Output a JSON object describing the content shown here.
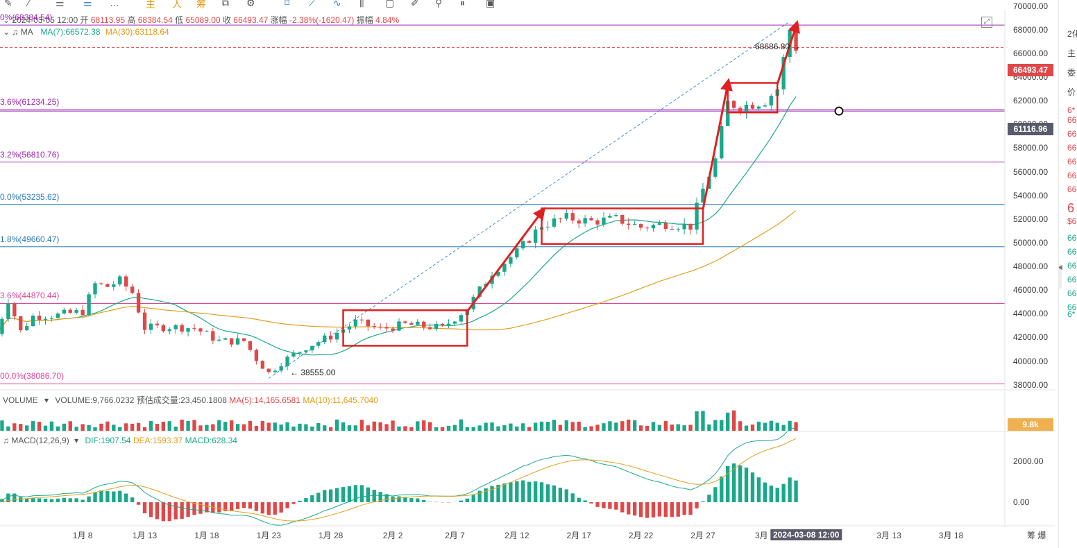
{
  "toolbar": {
    "items": [
      "主",
      "人",
      "筹"
    ]
  },
  "header": {
    "date": "2024-03-05 12:00",
    "open_label": "开",
    "open": "68113.95",
    "high_label": "高",
    "high": "68384.54",
    "low_label": "低",
    "low": "65089.00",
    "close_label": "收",
    "close": "66493.47",
    "change_label": "涨幅",
    "change": "-2.38%(-1620.47)",
    "amp_label": "振幅",
    "amp": "4.84%",
    "ma_label": "MA",
    "ma7": "MA(7):66572.38",
    "ma30": "MA(30):63118.64"
  },
  "volume_header": {
    "label": "VOLUME",
    "volume": "VOLUME:9,766.0232",
    "estimate": "预估成交量:23,450.1808",
    "ma5": "MA(5):14,165.6581",
    "ma10": "MA(10):11,645.7040",
    "tag": "9.8k"
  },
  "macd_header": {
    "label": "MACD(12,26,9)",
    "dif": "DIF:1907.54",
    "dea": "DEA:1593.37",
    "macd": "MACD:628.34"
  },
  "price_tags": {
    "last": "66493.47",
    "cursor": "61116.96"
  },
  "annotations": {
    "peak": "68686.80",
    "trough": "38555.00"
  },
  "fib_levels": [
    {
      "label": "0%(68384.54)",
      "value": 68384.54,
      "color": "#9b27b0"
    },
    {
      "label": "3.6%(61234.25)",
      "value": 61234.25,
      "color": "#9b27b0"
    },
    {
      "label": "3.2%(56810.76)",
      "value": 56810.76,
      "color": "#9b27b0"
    },
    {
      "label": "0.0%(53235.62)",
      "value": 53235.62,
      "color": "#2b7bb9"
    },
    {
      "label": "1.8%(49660.47)",
      "value": 49660.47,
      "color": "#2b7bb9"
    },
    {
      "label": "3.6%(44870.44)",
      "value": 44870.44,
      "color": "#e0469a"
    },
    {
      "label": "00.0%(38086.70)",
      "value": 38086.7,
      "color": "#e0469a"
    }
  ],
  "bottom_right": {
    "a": "筹",
    "b": "爆"
  },
  "sidebar": {
    "items": [
      "2化",
      "主",
      "委",
      "价",
      "6*",
      "66",
      "66",
      "66",
      "66",
      "66",
      "66",
      "6",
      "$6",
      "66",
      "66",
      "66",
      "66",
      "66",
      "66",
      "6*"
    ]
  },
  "chart_data": {
    "type": "candlestick",
    "timeframe": "12h",
    "y_axis": {
      "ticks": [
        70000,
        68000,
        66000,
        64000,
        62000,
        60000,
        58000,
        56000,
        54000,
        52000,
        50000,
        48000,
        46000,
        44000,
        42000,
        40000,
        38000
      ],
      "tick_labels": [
        "70000.00",
        "68000.00",
        "66000.00",
        "64000.00",
        "62000.00",
        "60000.00",
        "58000.00",
        "56000.00",
        "54000.00",
        "52000.00",
        "50000.00",
        "48000.00",
        "46000.00",
        "44000.00",
        "42000.00",
        "40000.00",
        "38000.00"
      ],
      "range": [
        37400,
        70500
      ]
    },
    "x_axis": {
      "tick_labels": [
        "1月 8",
        "1月 13",
        "1月 18",
        "1月 23",
        "1月 28",
        "2月 2",
        "2月 7",
        "2月 12",
        "2月 17",
        "2月 22",
        "2月 27",
        "3月 3",
        "2024-03-08 12:00",
        "3月 13",
        "3月 18"
      ],
      "tick_dates": [
        "2024-01-08",
        "2024-01-13",
        "2024-01-18",
        "2024-01-23",
        "2024-01-28",
        "2024-02-02",
        "2024-02-07",
        "2024-02-12",
        "2024-02-17",
        "2024-02-22",
        "2024-02-27",
        "2024-03-03",
        "2024-03-08",
        "2024-03-13",
        "2024-03-18"
      ],
      "start_date": "2024-01-01",
      "end_date": "2024-03-22"
    },
    "price_keypoints": [
      [
        "2024-01-01",
        42300
      ],
      [
        "2024-01-02",
        45200
      ],
      [
        "2024-01-03",
        42500
      ],
      [
        "2024-01-04",
        43800
      ],
      [
        "2024-01-06",
        43900
      ],
      [
        "2024-01-08",
        44200
      ],
      [
        "2024-01-09",
        46500
      ],
      [
        "2024-01-10",
        46300
      ],
      [
        "2024-01-11",
        46800
      ],
      [
        "2024-01-12",
        45800
      ],
      [
        "2024-01-13",
        42800
      ],
      [
        "2024-01-15",
        42900
      ],
      [
        "2024-01-17",
        42800
      ],
      [
        "2024-01-19",
        41700
      ],
      [
        "2024-01-21",
        41700
      ],
      [
        "2024-01-22",
        40200
      ],
      [
        "2024-01-23",
        39000
      ],
      [
        "2024-01-24",
        39900
      ],
      [
        "2024-01-26",
        41200
      ],
      [
        "2024-01-28",
        42100
      ],
      [
        "2024-01-30",
        43300
      ],
      [
        "2024-02-01",
        42700
      ],
      [
        "2024-02-03",
        43100
      ],
      [
        "2024-02-06",
        42800
      ],
      [
        "2024-02-08",
        44500
      ],
      [
        "2024-02-10",
        47500
      ],
      [
        "2024-02-12",
        49200
      ],
      [
        "2024-02-14",
        51500
      ],
      [
        "2024-02-16",
        52100
      ],
      [
        "2024-02-18",
        51800
      ],
      [
        "2024-02-20",
        52000
      ],
      [
        "2024-02-22",
        51300
      ],
      [
        "2024-02-24",
        51600
      ],
      [
        "2024-02-26",
        51400
      ],
      [
        "2024-02-27",
        54500
      ],
      [
        "2024-02-28",
        57000
      ],
      [
        "2024-02-29",
        61800
      ],
      [
        "2024-03-01",
        61500
      ],
      [
        "2024-03-03",
        62000
      ],
      [
        "2024-03-04",
        63000
      ],
      [
        "2024-03-05",
        68000
      ],
      [
        "2024-03-05 12:00",
        66493.47
      ]
    ],
    "series": [
      {
        "name": "MA(7)",
        "color": "#1aa88a"
      },
      {
        "name": "MA(30)",
        "color": "#e0a020"
      }
    ],
    "horizontal_lines": [
      {
        "value": 66493.47,
        "style": "dashed",
        "color": "#e04848"
      },
      {
        "value": 61116.96,
        "style": "solid",
        "color": "#9b27b0"
      }
    ],
    "annotation_boxes": [
      {
        "from": "2024-01-29",
        "to": "2024-02-08",
        "low": 41300,
        "high": 44300
      },
      {
        "from": "2024-02-14",
        "to": "2024-02-27",
        "low": 49900,
        "high": 52900
      },
      {
        "from": "2024-02-29",
        "to": "2024-03-04",
        "low": 61000,
        "high": 63500
      }
    ],
    "annotation_arrows": [
      {
        "from": [
          "2024-02-08",
          44200
        ],
        "to": [
          "2024-02-14",
          52600
        ]
      },
      {
        "from": [
          "2024-02-27",
          52800
        ],
        "to": [
          "2024-02-29",
          63400
        ]
      },
      {
        "from": [
          "2024-03-04",
          63400
        ],
        "to": [
          "2024-03-05 12:00",
          68300
        ]
      }
    ],
    "trend_line": {
      "from": [
        "2024-01-23",
        38555
      ],
      "to": [
        "2024-03-05",
        68686.8
      ],
      "style": "dashed"
    },
    "volume": {
      "range": [
        0,
        30000
      ],
      "current": 9766.0232
    },
    "macd": {
      "ticks": [
        2000,
        0
      ],
      "tick_labels": [
        "2000.00",
        "0.00"
      ],
      "dif": 1907.54,
      "dea": 1593.37,
      "macd": 628.34
    }
  }
}
